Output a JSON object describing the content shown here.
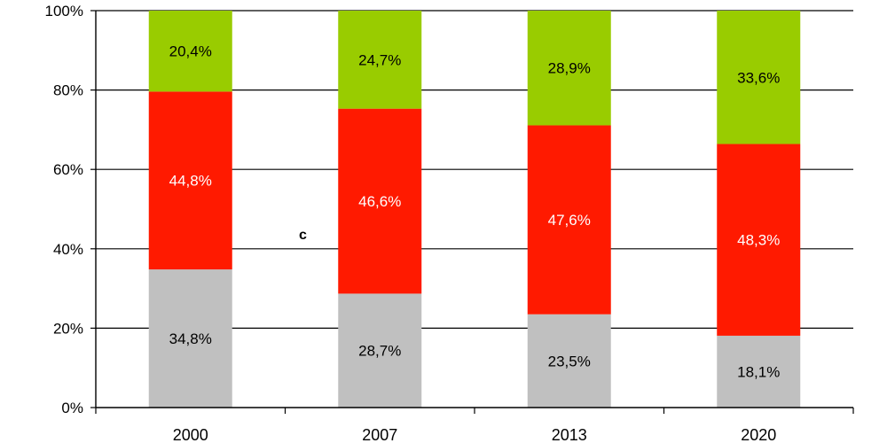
{
  "chart_data": {
    "type": "bar",
    "stacked": true,
    "percent_stacked": true,
    "categories": [
      "2000",
      "2007",
      "2013",
      "2020"
    ],
    "series": [
      {
        "values": [
          34.8,
          28.7,
          23.5,
          18.1
        ],
        "labels": [
          "34,8%",
          "28,7%",
          "23,5%",
          "18,1%"
        ],
        "color": "#c0c0c0",
        "label_color": "#000000"
      },
      {
        "values": [
          44.8,
          46.6,
          47.6,
          48.3
        ],
        "labels": [
          "44,8%",
          "46,6%",
          "47,6%",
          "48,3%"
        ],
        "color": "#ff1a00",
        "label_color": "#ffffff"
      },
      {
        "values": [
          20.4,
          24.7,
          28.9,
          33.6
        ],
        "labels": [
          "20,4%",
          "24,7%",
          "28,9%",
          "33,6%"
        ],
        "color": "#99cc00",
        "label_color": "#000000"
      }
    ],
    "yticks": [
      "0%",
      "20%",
      "40%",
      "60%",
      "80%",
      "100%"
    ],
    "ylim": [
      0,
      100
    ],
    "grid": true,
    "annotation": "c"
  }
}
